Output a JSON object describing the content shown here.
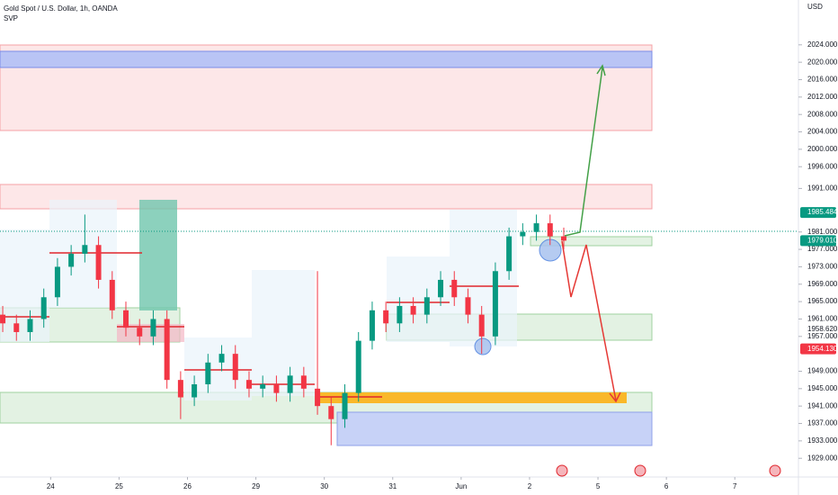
{
  "chart_data": {
    "type": "candlestick",
    "title": "Gold Spot / U.S. Dollar, 1h, OANDA",
    "subtitle": "SVP",
    "currency": "USD",
    "x": [
      -0.7,
      -0.5,
      -0.3,
      -0.1,
      0.1,
      0.3,
      0.5,
      0.7,
      0.9,
      1.1,
      1.3,
      1.5,
      1.7,
      1.9,
      2.1,
      2.3,
      2.5,
      2.7,
      2.9,
      3.1,
      3.3,
      3.5,
      3.7,
      3.9,
      4.1,
      4.3,
      4.5,
      4.7,
      4.9,
      5.1,
      5.3,
      5.5,
      5.7,
      5.9,
      6.1,
      6.3,
      6.5,
      6.7,
      6.9,
      7.1,
      7.3,
      7.5
    ],
    "open": [
      1962,
      1960,
      1958,
      1961,
      1966,
      1973,
      1976,
      1978,
      1970,
      1963,
      1959,
      1957,
      1961,
      1947,
      1943,
      1946,
      1951,
      1953,
      1947,
      1945,
      1946,
      1944,
      1948,
      1945,
      1941,
      1938,
      1944,
      1956,
      1963,
      1960,
      1964,
      1962,
      1966,
      1970,
      1966,
      1962,
      1957,
      1972,
      1980,
      1981,
      1983,
      1980
    ],
    "high": [
      1964,
      1962,
      1963,
      1968,
      1975,
      1978,
      1985,
      1980,
      1972,
      1965,
      1961,
      1963,
      1963,
      1949,
      1948,
      1953,
      1955,
      1955,
      1949,
      1948,
      1948,
      1950,
      1950,
      1972,
      1943,
      1946,
      1958,
      1965,
      1965,
      1966,
      1966,
      1968,
      1972,
      1972,
      1968,
      1964,
      1974,
      1982,
      1983,
      1985,
      1985,
      1982
    ],
    "low": [
      1958,
      1956,
      1956,
      1959,
      1964,
      1971,
      1974,
      1968,
      1961,
      1957,
      1955,
      1955,
      1945,
      1938,
      1941,
      1944,
      1949,
      1945,
      1943,
      1943,
      1942,
      1942,
      1943,
      1939,
      1932,
      1936,
      1942,
      1954,
      1958,
      1958,
      1960,
      1960,
      1964,
      1964,
      1960,
      1953,
      1955,
      1970,
      1978,
      1979,
      1978,
      1977
    ],
    "close": [
      1960,
      1958,
      1961,
      1966,
      1973,
      1976,
      1978,
      1970,
      1963,
      1959,
      1957,
      1961,
      1947,
      1943,
      1946,
      1951,
      1953,
      1947,
      1945,
      1946,
      1944,
      1948,
      1945,
      1941,
      1938,
      1944,
      1956,
      1963,
      1960,
      1964,
      1962,
      1966,
      1970,
      1966,
      1962,
      1957,
      1972,
      1980,
      1981,
      1983,
      1980,
      1979
    ],
    "up_color": "#089981",
    "down_color": "#f23645",
    "xlim": [
      -0.74,
      10.93
    ],
    "xticks": [
      {
        "value": 0,
        "label": "24"
      },
      {
        "value": 1,
        "label": "25"
      },
      {
        "value": 2,
        "label": "26"
      },
      {
        "value": 3,
        "label": "29"
      },
      {
        "value": 4,
        "label": "30"
      },
      {
        "value": 5,
        "label": "31"
      },
      {
        "value": 6,
        "label": "Jun"
      },
      {
        "value": 7,
        "label": "2"
      },
      {
        "value": 8,
        "label": "5"
      },
      {
        "value": 9,
        "label": "6"
      },
      {
        "value": 10,
        "label": "7"
      }
    ],
    "ylim": [
      1924.7,
      2034.3
    ],
    "yticks": [
      {
        "value": 2024,
        "label": "2024.000"
      },
      {
        "value": 2020,
        "label": "2020.000"
      },
      {
        "value": 2016,
        "label": "2016.000"
      },
      {
        "value": 2012,
        "label": "2012.000"
      },
      {
        "value": 2008,
        "label": "2008.000"
      },
      {
        "value": 2004,
        "label": "2004.000"
      },
      {
        "value": 2000,
        "label": "2000.000"
      },
      {
        "value": 1996,
        "label": "1996.000"
      },
      {
        "value": 1991,
        "label": "1991.000"
      },
      {
        "value": 1981,
        "label": "1981.000"
      },
      {
        "value": 1977,
        "label": "1977.000"
      },
      {
        "value": 1973,
        "label": "1973.000"
      },
      {
        "value": 1969,
        "label": "1969.000"
      },
      {
        "value": 1965,
        "label": "1965.000"
      },
      {
        "value": 1961,
        "label": "1961.000"
      },
      {
        "value": 1957,
        "label": "1957.000"
      },
      {
        "value": 1949,
        "label": "1949.000"
      },
      {
        "value": 1945,
        "label": "1945.000"
      },
      {
        "value": 1941,
        "label": "1941.000"
      },
      {
        "value": 1937,
        "label": "1937.000"
      },
      {
        "value": 1933,
        "label": "1933.000"
      },
      {
        "value": 1929,
        "label": "1929.000"
      }
    ],
    "price_tags": [
      {
        "value": 1985.484,
        "label": "1985.484",
        "color": "#089981"
      },
      {
        "value": 1979.01,
        "label": "1979.010",
        "color": "#089981"
      },
      {
        "value": 1958.62,
        "label": "1958.620",
        "color": "none"
      },
      {
        "value": 1954.13,
        "label": "1954.130",
        "color": "#f23645"
      }
    ]
  }
}
